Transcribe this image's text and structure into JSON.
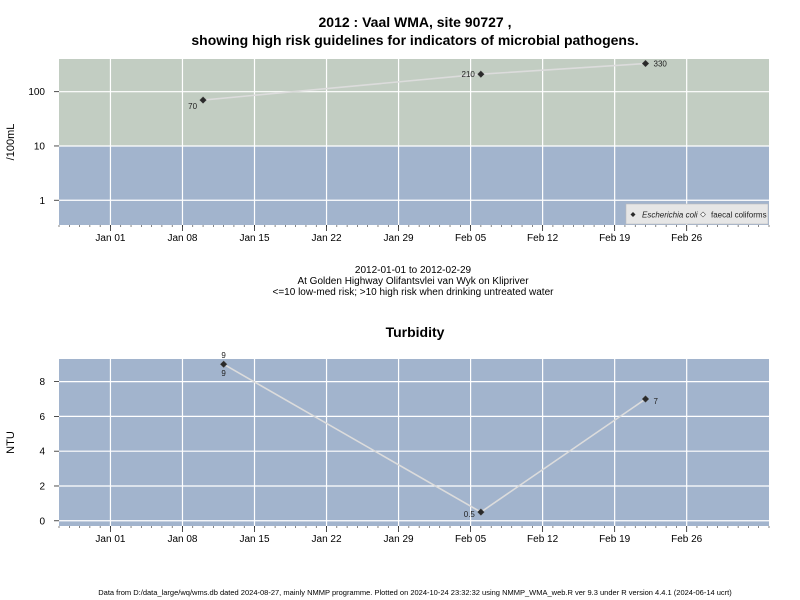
{
  "chart_data": [
    {
      "type": "line",
      "title_line1": "2012 : Vaal WMA, site 90727 ,",
      "title_line2": "showing high risk guidelines for indicators of microbial pathogens.",
      "ylabel": "/100mL",
      "yscale": "log",
      "ylim": [
        0.35,
        400
      ],
      "yticks": [
        1,
        10,
        100
      ],
      "ytick_labels": [
        "1",
        "10",
        "100"
      ],
      "xlim": [
        "2011-12-27",
        "2012-03-05"
      ],
      "xticks": [
        "2012-01-01",
        "2012-01-08",
        "2012-01-15",
        "2012-01-22",
        "2012-01-29",
        "2012-02-05",
        "2012-02-12",
        "2012-02-19",
        "2012-02-26"
      ],
      "xtick_labels": [
        "Jan 01",
        "Jan 08",
        "Jan 15",
        "Jan 22",
        "Jan 29",
        "Feb 05",
        "Feb 12",
        "Feb 19",
        "Feb 26"
      ],
      "threshold": 10,
      "bands": {
        "high_risk_color": "#c2cdc2",
        "low_risk_color": "#a2b4cd"
      },
      "grid": true,
      "legend_position": "bottom-right",
      "series": [
        {
          "name": "Escherichia coli",
          "x": [
            "2012-01-10",
            "2012-02-06",
            "2012-02-22"
          ],
          "y": [
            70,
            210,
            330
          ],
          "labels": [
            "70",
            "210",
            "330"
          ]
        },
        {
          "name": "faecal coliforms",
          "x": [],
          "y": [],
          "labels": []
        }
      ]
    },
    {
      "type": "line",
      "title": "Turbidity",
      "ylabel": "NTU",
      "ylim": [
        -0.3,
        9.3
      ],
      "yticks": [
        0,
        2,
        4,
        6,
        8
      ],
      "ytick_labels": [
        "0",
        "2",
        "4",
        "6",
        "8"
      ],
      "xlim": [
        "2011-12-27",
        "2012-03-05"
      ],
      "xticks": [
        "2012-01-01",
        "2012-01-08",
        "2012-01-15",
        "2012-01-22",
        "2012-01-29",
        "2012-02-05",
        "2012-02-12",
        "2012-02-19",
        "2012-02-26"
      ],
      "xtick_labels": [
        "Jan 01",
        "Jan 08",
        "Jan 15",
        "Jan 22",
        "Jan 29",
        "Feb 05",
        "Feb 12",
        "Feb 19",
        "Feb 26"
      ],
      "background_color": "#a2b4cd",
      "grid": true,
      "series": [
        {
          "name": "",
          "x": [
            "2012-01-12",
            "2012-02-06",
            "2012-02-22"
          ],
          "y": [
            9,
            0.5,
            7
          ],
          "labels": [
            "9",
            "0.5",
            "7"
          ],
          "label_above": "9"
        }
      ]
    }
  ],
  "caption": {
    "date_range": "2012-01-01 to 2012-02-29",
    "location": "At Golden Highway Olifantsvlei van Wyk on Klipriver",
    "risk_note": "<=10 low-med risk; >10 high risk when drinking untreated water"
  },
  "footer": "Data from D:/data_large/wq/wms.db dated 2024-08-27, mainly NMMP programme. Plotted on 2024-10-24 23:32:32 using NMMP_WMA_web.R ver 9.3 under R version 4.4.1 (2024-06-14 ucrt)"
}
